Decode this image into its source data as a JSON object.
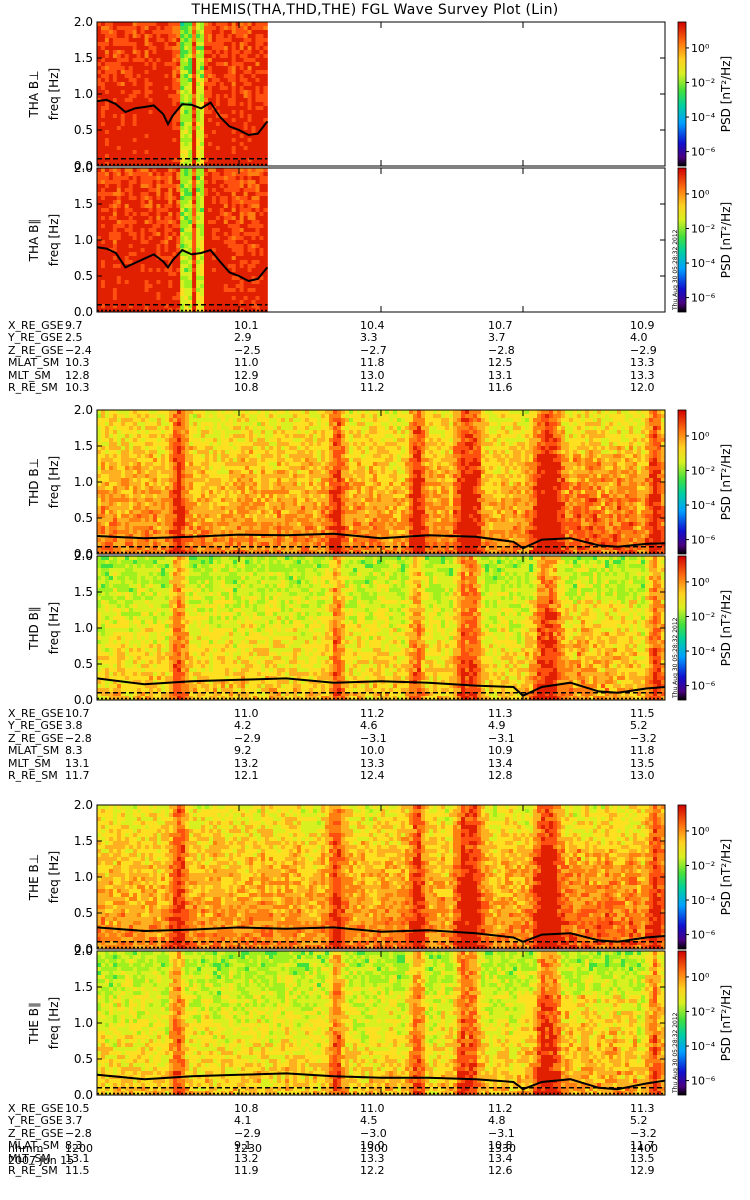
{
  "title": "THEMIS(THA,THD,THE) FGL Wave Survey Plot (Lin)",
  "colorbar": {
    "label": "PSD [nT²/Hz]",
    "ticks": [
      "10⁰",
      "10⁻²",
      "10⁻⁴",
      "10⁻⁶"
    ]
  },
  "stamp": "Thu Aug 30 05:28:32 2012",
  "chart_data": [
    {
      "type": "heatmap",
      "probe": "THA",
      "panels": [
        {
          "ylabel_main": "THA B⊥",
          "ylabel_sub": "freq [Hz]"
        },
        {
          "ylabel_main": "THA B∥",
          "ylabel_sub": "freq [Hz]"
        }
      ],
      "ylim": [
        0,
        2.0
      ],
      "yticks": [
        "0.0",
        "0.5",
        "1.0",
        "1.5",
        "2.0"
      ],
      "x_range_hhmm": [
        1200,
        1400
      ],
      "data_end_hhmm": 1236,
      "black_line_perp": [
        [
          1200,
          0.9
        ],
        [
          1202,
          0.92
        ],
        [
          1204,
          0.86
        ],
        [
          1206,
          0.75
        ],
        [
          1208,
          0.8
        ],
        [
          1210,
          0.82
        ],
        [
          1212,
          0.84
        ],
        [
          1214,
          0.72
        ],
        [
          1215,
          0.58
        ],
        [
          1216,
          0.7
        ],
        [
          1218,
          0.86
        ],
        [
          1220,
          0.85
        ],
        [
          1222,
          0.8
        ],
        [
          1224,
          0.88
        ],
        [
          1226,
          0.68
        ],
        [
          1228,
          0.55
        ],
        [
          1230,
          0.5
        ],
        [
          1232,
          0.43
        ],
        [
          1234,
          0.45
        ],
        [
          1236,
          0.62
        ]
      ],
      "black_line_par": [
        [
          1200,
          0.9
        ],
        [
          1202,
          0.88
        ],
        [
          1204,
          0.82
        ],
        [
          1206,
          0.62
        ],
        [
          1208,
          0.68
        ],
        [
          1210,
          0.74
        ],
        [
          1212,
          0.8
        ],
        [
          1214,
          0.7
        ],
        [
          1215,
          0.62
        ],
        [
          1216,
          0.72
        ],
        [
          1218,
          0.86
        ],
        [
          1220,
          0.8
        ],
        [
          1222,
          0.82
        ],
        [
          1224,
          0.86
        ],
        [
          1226,
          0.7
        ],
        [
          1228,
          0.55
        ],
        [
          1230,
          0.5
        ],
        [
          1232,
          0.43
        ],
        [
          1234,
          0.46
        ],
        [
          1236,
          0.62
        ]
      ],
      "ephemeris": {
        "X_RE_GSE": [
          "9.7",
          "10.1",
          "10.4",
          "10.7",
          "10.9"
        ],
        "Y_RE_GSE": [
          "2.5",
          "2.9",
          "3.3",
          "3.7",
          "4.0"
        ],
        "Z_RE_GSE": [
          "−2.4",
          "−2.5",
          "−2.7",
          "−2.8",
          "−2.9"
        ],
        "MLAT_SM": [
          "10.3",
          "11.0",
          "11.8",
          "12.5",
          "13.3"
        ],
        "MLT_SM": [
          "12.8",
          "12.9",
          "13.0",
          "13.1",
          "13.3"
        ],
        "R_RE_SM": [
          "10.3",
          "10.8",
          "11.2",
          "11.6",
          "12.0"
        ]
      }
    },
    {
      "type": "heatmap",
      "probe": "THD",
      "panels": [
        {
          "ylabel_main": "THD B⊥",
          "ylabel_sub": "freq [Hz]"
        },
        {
          "ylabel_main": "THD B∥",
          "ylabel_sub": "freq [Hz]"
        }
      ],
      "ylim": [
        0,
        2.0
      ],
      "yticks": [
        "0.0",
        "0.5",
        "1.0",
        "1.5",
        "2.0"
      ],
      "x_range_hhmm": [
        1200,
        1400
      ],
      "data_end_hhmm": 1400,
      "black_line_perp": [
        [
          1200,
          0.25
        ],
        [
          1210,
          0.22
        ],
        [
          1220,
          0.24
        ],
        [
          1230,
          0.27
        ],
        [
          1240,
          0.26
        ],
        [
          1250,
          0.28
        ],
        [
          1300,
          0.22
        ],
        [
          1310,
          0.26
        ],
        [
          1320,
          0.24
        ],
        [
          1328,
          0.17
        ],
        [
          1330,
          0.08
        ],
        [
          1334,
          0.2
        ],
        [
          1340,
          0.22
        ],
        [
          1346,
          0.12
        ],
        [
          1350,
          0.1
        ],
        [
          1356,
          0.14
        ],
        [
          1400,
          0.15
        ]
      ],
      "black_line_par": [
        [
          1200,
          0.3
        ],
        [
          1210,
          0.22
        ],
        [
          1220,
          0.26
        ],
        [
          1230,
          0.28
        ],
        [
          1240,
          0.3
        ],
        [
          1250,
          0.24
        ],
        [
          1300,
          0.26
        ],
        [
          1310,
          0.24
        ],
        [
          1320,
          0.2
        ],
        [
          1328,
          0.18
        ],
        [
          1330,
          0.06
        ],
        [
          1334,
          0.18
        ],
        [
          1340,
          0.24
        ],
        [
          1346,
          0.12
        ],
        [
          1350,
          0.1
        ],
        [
          1356,
          0.16
        ],
        [
          1400,
          0.18
        ]
      ],
      "ephemeris": {
        "X_RE_GSE": [
          "10.7",
          "11.0",
          "11.2",
          "11.3",
          "11.5"
        ],
        "Y_RE_GSE": [
          "3.8",
          "4.2",
          "4.6",
          "4.9",
          "5.2"
        ],
        "Z_RE_GSE": [
          "−2.8",
          "−2.9",
          "−3.1",
          "−3.1",
          "−3.2"
        ],
        "MLAT_SM": [
          "8.3",
          "9.2",
          "10.0",
          "10.9",
          "11.8"
        ],
        "MLT_SM": [
          "13.1",
          "13.2",
          "13.3",
          "13.4",
          "13.5"
        ],
        "R_RE_SM": [
          "11.7",
          "12.1",
          "12.4",
          "12.8",
          "13.0"
        ]
      }
    },
    {
      "type": "heatmap",
      "probe": "THE",
      "panels": [
        {
          "ylabel_main": "THE B⊥",
          "ylabel_sub": "freq [Hz]"
        },
        {
          "ylabel_main": "THE B∥",
          "ylabel_sub": "freq [Hz]"
        }
      ],
      "ylim": [
        0,
        2.0
      ],
      "yticks": [
        "0.0",
        "0.5",
        "1.0",
        "1.5",
        "2.0"
      ],
      "x_range_hhmm": [
        1200,
        1400
      ],
      "data_end_hhmm": 1400,
      "black_line_perp": [
        [
          1200,
          0.3
        ],
        [
          1210,
          0.25
        ],
        [
          1220,
          0.27
        ],
        [
          1230,
          0.3
        ],
        [
          1240,
          0.28
        ],
        [
          1250,
          0.3
        ],
        [
          1300,
          0.24
        ],
        [
          1310,
          0.26
        ],
        [
          1320,
          0.22
        ],
        [
          1328,
          0.16
        ],
        [
          1330,
          0.1
        ],
        [
          1334,
          0.2
        ],
        [
          1340,
          0.22
        ],
        [
          1346,
          0.12
        ],
        [
          1350,
          0.1
        ],
        [
          1356,
          0.16
        ],
        [
          1400,
          0.18
        ]
      ],
      "black_line_par": [
        [
          1200,
          0.28
        ],
        [
          1210,
          0.22
        ],
        [
          1220,
          0.26
        ],
        [
          1230,
          0.28
        ],
        [
          1240,
          0.3
        ],
        [
          1250,
          0.26
        ],
        [
          1300,
          0.24
        ],
        [
          1310,
          0.24
        ],
        [
          1320,
          0.22
        ],
        [
          1328,
          0.18
        ],
        [
          1330,
          0.08
        ],
        [
          1334,
          0.18
        ],
        [
          1340,
          0.22
        ],
        [
          1346,
          0.1
        ],
        [
          1350,
          0.08
        ],
        [
          1356,
          0.16
        ],
        [
          1400,
          0.2
        ]
      ],
      "ephemeris": {
        "X_RE_GSE": [
          "10.5",
          "10.8",
          "11.0",
          "11.2",
          "11.3"
        ],
        "Y_RE_GSE": [
          "3.7",
          "4.1",
          "4.5",
          "4.8",
          "5.2"
        ],
        "Z_RE_GSE": [
          "−2.8",
          "−2.9",
          "−3.0",
          "−3.1",
          "−3.2"
        ],
        "MLAT_SM": [
          "8.3",
          "9.1",
          "10.0",
          "10.8",
          "11.7"
        ],
        "MLT_SM": [
          "13.1",
          "13.2",
          "13.3",
          "13.4",
          "13.5"
        ],
        "R_RE_SM": [
          "11.5",
          "11.9",
          "12.2",
          "12.6",
          "12.9"
        ]
      }
    }
  ],
  "time_axis": {
    "label": "hhmm",
    "ticks": [
      "1200",
      "1230",
      "1300",
      "1330",
      "1400"
    ],
    "date": "2007 Jun 15"
  }
}
